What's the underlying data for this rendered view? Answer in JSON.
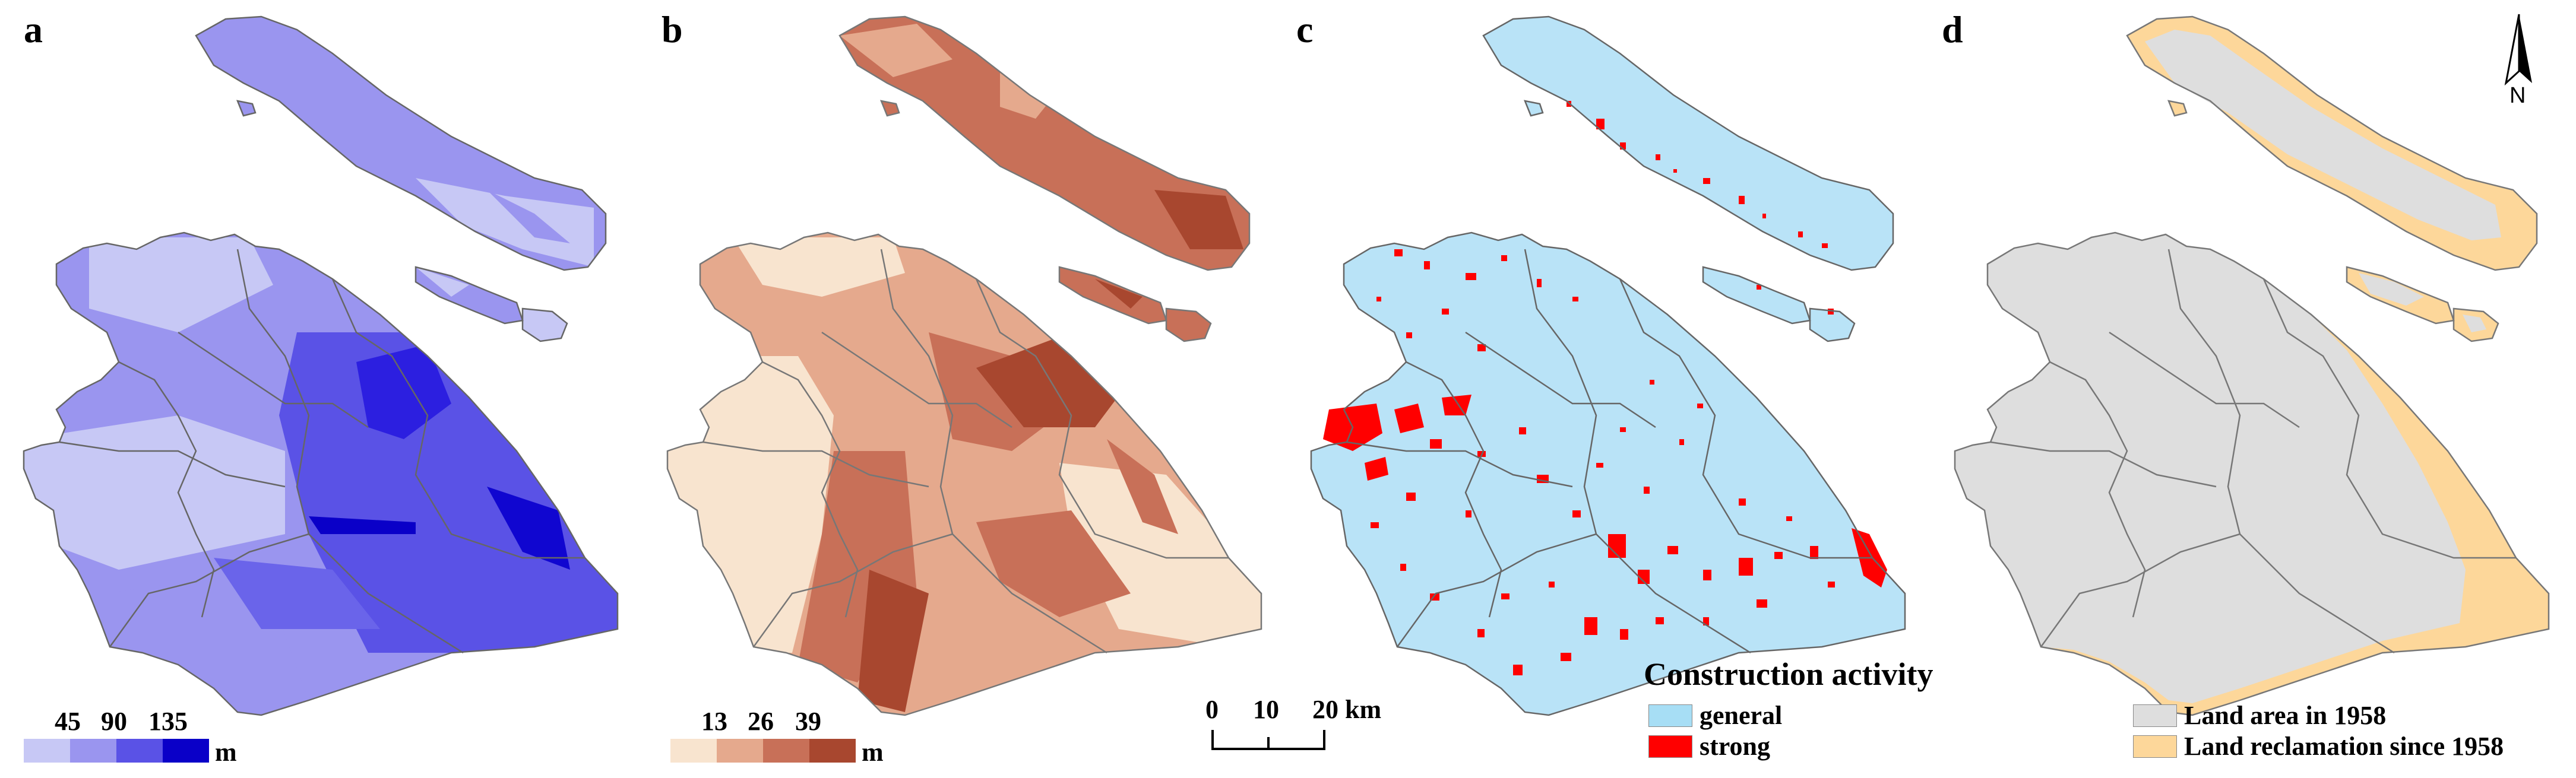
{
  "panels": [
    {
      "id": "a",
      "label": "a",
      "theme": "blue-gradient",
      "colors": [
        "#c7c8f5",
        "#9a95ef",
        "#6a64ea",
        "#2c1fe0",
        "#0a00c8"
      ],
      "legend": {
        "ticks": [
          "45",
          "90",
          "135"
        ],
        "unit": "m",
        "swatches": [
          "#c7c8f5",
          "#9a95ef",
          "#5a52e6",
          "#0a00c8"
        ]
      }
    },
    {
      "id": "b",
      "label": "b",
      "theme": "brown-gradient",
      "colors": [
        "#f8e4cf",
        "#e5a98d",
        "#c87058",
        "#a8472f"
      ],
      "legend": {
        "ticks": [
          "13",
          "26",
          "39"
        ],
        "unit": "m",
        "swatches": [
          "#f8e4cf",
          "#e5a98d",
          "#c87058",
          "#a8472f"
        ]
      }
    },
    {
      "id": "c",
      "label": "c",
      "theme": "construction",
      "colors": [
        "#b9e3f7",
        "#ff0000"
      ],
      "legend": {
        "title": "Construction activity",
        "items": [
          {
            "label": "general",
            "color": "#a7def5"
          },
          {
            "label": "strong",
            "color": "#ff0000"
          }
        ]
      },
      "scalebar": {
        "ticks": [
          "0",
          "10",
          "20 km"
        ]
      }
    },
    {
      "id": "d",
      "label": "d",
      "theme": "reclamation",
      "colors": [
        "#dedede",
        "#fdd79a"
      ],
      "legend": {
        "items": [
          {
            "label": "Land area in 1958",
            "color": "#dedede"
          },
          {
            "label": "Land reclamation since 1958",
            "color": "#fdd79a"
          }
        ]
      },
      "north": {
        "label": "N"
      }
    }
  ]
}
